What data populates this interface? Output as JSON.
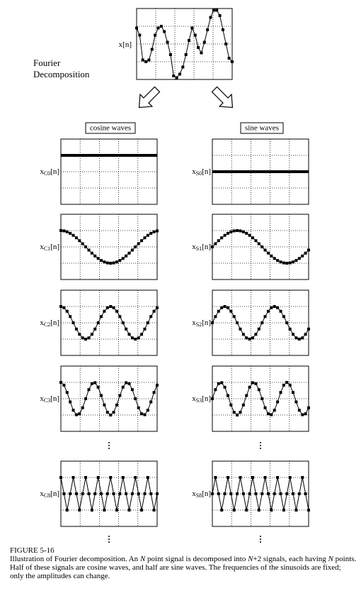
{
  "figure": {
    "signal_label": {
      "base": "x",
      "suffix": "[n]"
    },
    "title_lines": [
      "Fourier",
      "Decomposition"
    ],
    "columns": [
      {
        "header": "cosine waves",
        "rows": [
          {
            "base": "x",
            "sub": "C0",
            "suffix": "[n]"
          },
          {
            "base": "x",
            "sub": "C1",
            "suffix": "[n]"
          },
          {
            "base": "x",
            "sub": "C2",
            "suffix": "[n]"
          },
          {
            "base": "x",
            "sub": "C3",
            "suffix": "[n]"
          },
          {
            "base": "x",
            "sub": "C8",
            "suffix": "[n]"
          }
        ]
      },
      {
        "header": "sine waves",
        "rows": [
          {
            "base": "x",
            "sub": "S0",
            "suffix": "[n]"
          },
          {
            "base": "x",
            "sub": "S1",
            "suffix": "[n]"
          },
          {
            "base": "x",
            "sub": "S2",
            "suffix": "[n]"
          },
          {
            "base": "x",
            "sub": "S3",
            "suffix": "[n]"
          },
          {
            "base": "x",
            "sub": "S8",
            "suffix": "[n]"
          }
        ]
      }
    ]
  },
  "caption": {
    "label": "FIGURE 5-16",
    "segments": [
      "Illustration of Fourier decomposition.  An ",
      "N",
      " point signal is decomposed into ",
      "N",
      "+2 signals, each having ",
      "N",
      " points.  Half of these signals are cosine waves, and half are sine waves.  The frequencies of the sinusoids are fixed; only the amplitudes can change."
    ]
  }
}
